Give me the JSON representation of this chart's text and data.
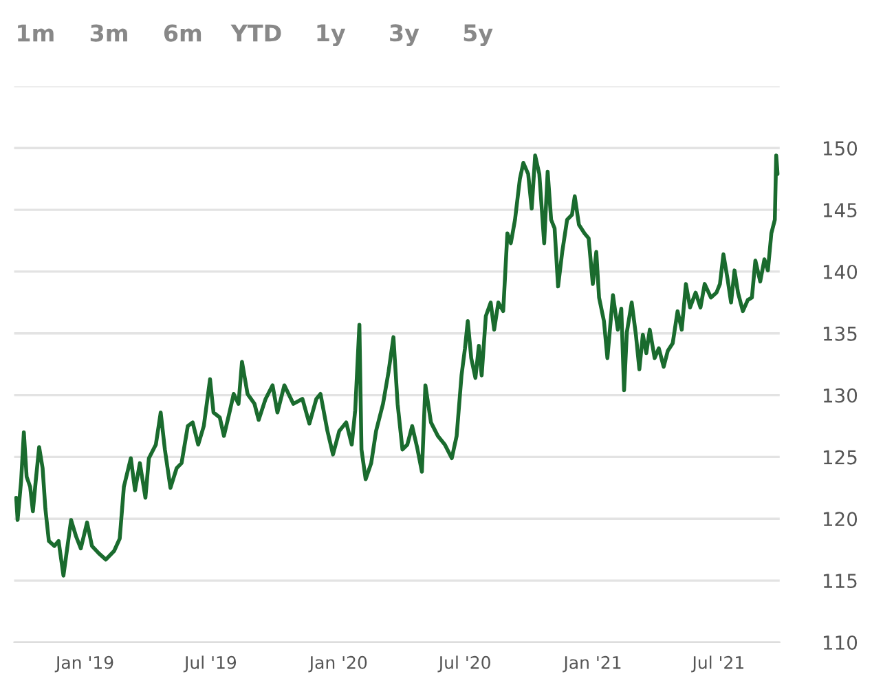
{
  "chart_data": {
    "type": "line",
    "annotations": [
      "1m",
      "3m",
      "6m",
      "YTD",
      "1y",
      "3y",
      "5y"
    ],
    "x": [
      "2018-09-24",
      "2018-09-26",
      "2018-10-01",
      "2018-10-05",
      "2018-10-09",
      "2018-10-14",
      "2018-10-18",
      "2018-10-22",
      "2018-10-27",
      "2018-11-01",
      "2018-11-05",
      "2018-11-10",
      "2018-11-18",
      "2018-11-24",
      "2018-12-01",
      "2018-12-12",
      "2018-12-19",
      "2018-12-26",
      "2019-01-04",
      "2019-01-11",
      "2019-01-21",
      "2019-01-31",
      "2019-02-12",
      "2019-02-20",
      "2019-02-26",
      "2019-03-08",
      "2019-03-14",
      "2019-03-21",
      "2019-03-29",
      "2019-04-03",
      "2019-04-13",
      "2019-04-20",
      "2019-04-26",
      "2019-05-04",
      "2019-05-13",
      "2019-05-20",
      "2019-05-29",
      "2019-06-05",
      "2019-06-13",
      "2019-06-21",
      "2019-06-30",
      "2019-07-05",
      "2019-07-14",
      "2019-07-20",
      "2019-07-28",
      "2019-08-03",
      "2019-08-10",
      "2019-08-15",
      "2019-08-23",
      "2019-09-02",
      "2019-09-08",
      "2019-09-18",
      "2019-09-28",
      "2019-10-05",
      "2019-10-15",
      "2019-10-28",
      "2019-11-10",
      "2019-11-20",
      "2019-11-30",
      "2019-12-06",
      "2019-12-16",
      "2019-12-24",
      "2020-01-02",
      "2020-01-12",
      "2020-01-20",
      "2020-01-25",
      "2020-01-31",
      "2020-02-03",
      "2020-02-09",
      "2020-02-17",
      "2020-02-24",
      "2020-03-05",
      "2020-03-13",
      "2020-03-20",
      "2020-03-26",
      "2020-04-02",
      "2020-04-09",
      "2020-04-16",
      "2020-04-23",
      "2020-04-30",
      "2020-05-05",
      "2020-05-13",
      "2020-05-23",
      "2020-06-02",
      "2020-06-12",
      "2020-06-19",
      "2020-06-26",
      "2020-07-01",
      "2020-07-05",
      "2020-07-10",
      "2020-07-16",
      "2020-07-21",
      "2020-07-25",
      "2020-07-31",
      "2020-08-07",
      "2020-08-12",
      "2020-08-18",
      "2020-08-25",
      "2020-08-31",
      "2020-09-05",
      "2020-09-11",
      "2020-09-18",
      "2020-09-23",
      "2020-09-30",
      "2020-10-05",
      "2020-10-10",
      "2020-10-16",
      "2020-10-23",
      "2020-10-28",
      "2020-11-02",
      "2020-11-07",
      "2020-11-12",
      "2020-11-18",
      "2020-11-25",
      "2020-12-02",
      "2020-12-06",
      "2020-12-12",
      "2020-12-20",
      "2020-12-26",
      "2021-01-01",
      "2021-01-06",
      "2021-01-10",
      "2021-01-17",
      "2021-01-22",
      "2021-01-30",
      "2021-02-06",
      "2021-02-11",
      "2021-02-15",
      "2021-02-19",
      "2021-02-26",
      "2021-03-04",
      "2021-03-09",
      "2021-03-14",
      "2021-03-19",
      "2021-03-24",
      "2021-03-31",
      "2021-04-06",
      "2021-04-13",
      "2021-04-19",
      "2021-04-26",
      "2021-05-03",
      "2021-05-09",
      "2021-05-15",
      "2021-05-21",
      "2021-05-29",
      "2021-06-05",
      "2021-06-11",
      "2021-06-20",
      "2021-06-28",
      "2021-07-03",
      "2021-07-08",
      "2021-07-14",
      "2021-07-19",
      "2021-07-24",
      "2021-07-29",
      "2021-08-05",
      "2021-08-12",
      "2021-08-18",
      "2021-08-23",
      "2021-08-30",
      "2021-09-05",
      "2021-09-10",
      "2021-09-15",
      "2021-09-20",
      "2021-09-22",
      "2021-09-24"
    ],
    "series": [
      {
        "color": "#1a6b2e",
        "values": [
          121.7,
          119.9,
          123.0,
          127.0,
          123.4,
          122.6,
          120.6,
          123.0,
          125.8,
          124.1,
          120.8,
          118.2,
          117.8,
          118.2,
          115.4,
          119.9,
          118.6,
          117.6,
          119.7,
          117.8,
          117.2,
          116.7,
          117.4,
          118.4,
          122.6,
          124.9,
          122.3,
          124.5,
          121.7,
          124.9,
          126.0,
          128.6,
          125.6,
          122.5,
          124.1,
          124.5,
          127.5,
          127.8,
          126.0,
          127.5,
          131.3,
          128.6,
          128.2,
          126.7,
          128.6,
          130.1,
          129.3,
          132.7,
          130.1,
          129.3,
          128.0,
          129.7,
          130.8,
          128.6,
          130.8,
          129.3,
          129.7,
          127.7,
          129.7,
          130.1,
          127.1,
          125.2,
          127.1,
          127.8,
          126.0,
          128.8,
          135.7,
          125.6,
          123.2,
          124.5,
          127.1,
          129.3,
          131.9,
          134.7,
          129.3,
          125.6,
          126.0,
          127.5,
          125.8,
          123.8,
          130.8,
          127.8,
          126.7,
          126.0,
          124.9,
          126.7,
          131.6,
          133.8,
          136.0,
          133.0,
          131.4,
          134.0,
          131.6,
          136.4,
          137.5,
          135.3,
          137.5,
          136.8,
          143.1,
          142.3,
          144.2,
          147.5,
          148.8,
          147.9,
          145.1,
          149.4,
          147.9,
          142.3,
          148.1,
          144.2,
          143.5,
          138.8,
          141.6,
          144.2,
          144.6,
          146.1,
          143.8,
          143.1,
          142.7,
          139.0,
          141.6,
          137.9,
          136.0,
          133.0,
          138.1,
          135.3,
          137.0,
          130.4,
          135.1,
          137.5,
          134.9,
          132.1,
          134.9,
          133.4,
          135.3,
          133.0,
          133.8,
          132.3,
          133.6,
          134.2,
          136.8,
          135.3,
          139.0,
          137.1,
          138.3,
          137.1,
          139.0,
          137.9,
          138.3,
          139.0,
          141.4,
          139.4,
          137.5,
          140.1,
          138.3,
          136.8,
          137.7,
          137.9,
          140.9,
          139.2,
          141.0,
          140.1,
          143.1,
          144.2,
          149.4,
          147.9
        ]
      }
    ],
    "xlim": [
      "2018-09-21",
      "2021-09-27"
    ],
    "xticks": [
      {
        "value": "2019-01-01",
        "label": "Jan '19"
      },
      {
        "value": "2019-07-01",
        "label": "Jul '19"
      },
      {
        "value": "2020-01-01",
        "label": "Jan '20"
      },
      {
        "value": "2020-07-01",
        "label": "Jul '20"
      },
      {
        "value": "2021-01-01",
        "label": "Jan '21"
      },
      {
        "value": "2021-07-01",
        "label": "Jul '21"
      }
    ],
    "ylim": [
      110,
      155
    ],
    "yticks": [
      110,
      115,
      120,
      125,
      130,
      135,
      140,
      145,
      150,
      {
        "value": 155,
        "label": null
      }
    ],
    "grid": "y",
    "legend": false,
    "marker": "none",
    "line_style": "solid"
  }
}
